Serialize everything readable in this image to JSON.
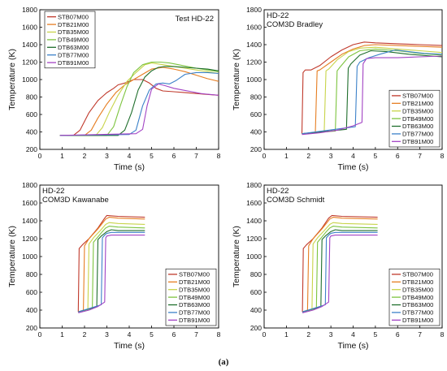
{
  "figure": {
    "caption": "(a)",
    "series_colors": {
      "STB07M00": "#c0392b",
      "DTB21M00": "#e67e22",
      "DTB35M00": "#c8d44a",
      "DTB49M00": "#7dc43f",
      "DTB63M00": "#1f6e2c",
      "DTB77M00": "#3d82c9",
      "DTB91M00": "#a243c4"
    }
  },
  "chart_data": [
    {
      "type": "line",
      "title": "Test HD-22",
      "xlabel": "Time (s)",
      "ylabel": "Temperature (K)",
      "xlim": [
        0,
        8
      ],
      "ylim": [
        200,
        1800
      ],
      "xticks": [
        "0",
        "1",
        "2",
        "3",
        "4",
        "5",
        "6",
        "7",
        "8"
      ],
      "yticks": [
        "200",
        "400",
        "600",
        "800",
        "1000",
        "1200",
        "1400",
        "1600",
        "1800"
      ],
      "legend_position": "top-left",
      "series": [
        {
          "name": "STB07M00",
          "x": [
            0.9,
            1.5,
            1.8,
            2.2,
            2.6,
            3.0,
            3.3,
            3.5,
            3.8,
            4.2,
            4.6,
            4.9,
            5.2,
            5.5,
            6.0,
            6.5,
            7.0,
            7.5,
            8.0
          ],
          "y": [
            360,
            360,
            420,
            620,
            760,
            850,
            900,
            940,
            960,
            1000,
            1000,
            960,
            900,
            870,
            860,
            850,
            840,
            830,
            820
          ]
        },
        {
          "name": "DTB21M00",
          "x": [
            0.9,
            2.0,
            2.3,
            2.6,
            3.0,
            3.4,
            3.8,
            4.2,
            4.6,
            5.0,
            5.5,
            6.0,
            6.5,
            7.0,
            7.5,
            8.0
          ],
          "y": [
            360,
            360,
            420,
            560,
            720,
            850,
            940,
            1000,
            1060,
            1120,
            1140,
            1120,
            1090,
            1050,
            1010,
            980
          ]
        },
        {
          "name": "DTB35M00",
          "x": [
            0.9,
            2.5,
            2.8,
            3.1,
            3.5,
            3.9,
            4.3,
            4.7,
            5.0,
            5.5,
            6.0,
            6.5,
            7.0,
            7.5,
            8.0
          ],
          "y": [
            360,
            360,
            450,
            620,
            820,
            980,
            1080,
            1170,
            1190,
            1170,
            1150,
            1130,
            1110,
            1090,
            1070
          ]
        },
        {
          "name": "DTB49M00",
          "x": [
            0.9,
            3.0,
            3.3,
            3.6,
            3.9,
            4.2,
            4.6,
            5.0,
            5.4,
            5.8,
            6.2,
            6.6,
            7.0,
            7.5,
            8.0
          ],
          "y": [
            360,
            360,
            460,
            700,
            920,
            1080,
            1170,
            1200,
            1200,
            1190,
            1170,
            1150,
            1130,
            1110,
            1090
          ]
        },
        {
          "name": "DTB63M00",
          "x": [
            0.9,
            3.5,
            3.8,
            4.1,
            4.4,
            4.7,
            5.0,
            5.3,
            5.6,
            6.0,
            6.5,
            7.0,
            7.5,
            8.0
          ],
          "y": [
            360,
            360,
            420,
            620,
            880,
            1030,
            1100,
            1140,
            1150,
            1150,
            1140,
            1130,
            1120,
            1100
          ]
        },
        {
          "name": "DTB77M00",
          "x": [
            0.9,
            4.0,
            4.3,
            4.6,
            4.9,
            5.2,
            5.5,
            5.8,
            6.1,
            6.5,
            7.0,
            7.5,
            8.0
          ],
          "y": [
            360,
            370,
            420,
            700,
            880,
            950,
            960,
            950,
            990,
            1060,
            1080,
            1080,
            1070
          ]
        },
        {
          "name": "DTB91M00",
          "x": [
            0.9,
            4.3,
            4.6,
            4.8,
            5.0,
            5.3,
            5.6,
            6.0,
            6.4,
            6.8,
            7.2,
            7.6,
            8.0
          ],
          "y": [
            360,
            380,
            430,
            700,
            890,
            950,
            930,
            900,
            880,
            860,
            840,
            830,
            820
          ]
        }
      ]
    },
    {
      "type": "line",
      "title": "HD-22",
      "subtitle": "COM3D Bradley",
      "xlabel": "Time (s)",
      "ylabel": "Temperature (K)",
      "xlim": [
        0,
        8
      ],
      "ylim": [
        200,
        1800
      ],
      "xticks": [
        "0",
        "1",
        "2",
        "3",
        "4",
        "5",
        "6",
        "7",
        "8"
      ],
      "yticks": [
        "200",
        "400",
        "600",
        "800",
        "1000",
        "1200",
        "1400",
        "1600",
        "1800"
      ],
      "legend_position": "bottom-right",
      "series": [
        {
          "name": "STB07M00",
          "x": [
            1.7,
            1.75,
            1.85,
            2.1,
            2.5,
            3.0,
            3.5,
            4.0,
            4.5,
            5.0,
            6.0,
            7.0,
            8.0
          ],
          "y": [
            380,
            1080,
            1110,
            1110,
            1160,
            1260,
            1340,
            1400,
            1430,
            1420,
            1410,
            1400,
            1390
          ]
        },
        {
          "name": "DTB21M00",
          "x": [
            1.7,
            2.3,
            2.38,
            2.5,
            3.0,
            3.5,
            4.0,
            4.5,
            5.0,
            6.0,
            7.0,
            8.0
          ],
          "y": [
            380,
            390,
            1100,
            1110,
            1200,
            1290,
            1350,
            1390,
            1400,
            1390,
            1380,
            1370
          ]
        },
        {
          "name": "DTB35M00",
          "x": [
            1.7,
            2.7,
            2.78,
            2.9,
            3.3,
            3.8,
            4.3,
            5.0,
            6.0,
            7.0,
            8.0
          ],
          "y": [
            380,
            400,
            1100,
            1120,
            1230,
            1320,
            1360,
            1370,
            1350,
            1330,
            1310
          ]
        },
        {
          "name": "DTB49M00",
          "x": [
            1.7,
            3.2,
            3.28,
            3.4,
            3.8,
            4.3,
            5.0,
            6.0,
            7.0,
            8.0
          ],
          "y": [
            380,
            410,
            1100,
            1140,
            1260,
            1330,
            1350,
            1330,
            1300,
            1280
          ]
        },
        {
          "name": "DTB63M00",
          "x": [
            1.7,
            3.7,
            3.78,
            3.9,
            4.3,
            4.8,
            5.5,
            6.5,
            7.5,
            8.0
          ],
          "y": [
            380,
            430,
            1130,
            1180,
            1280,
            1330,
            1320,
            1290,
            1270,
            1260
          ]
        },
        {
          "name": "DTB77M00",
          "x": [
            1.7,
            4.1,
            4.18,
            4.3,
            4.7,
            5.2,
            5.9,
            6.5,
            7.2,
            8.0
          ],
          "y": [
            380,
            460,
            1150,
            1200,
            1250,
            1290,
            1340,
            1320,
            1300,
            1290
          ]
        },
        {
          "name": "DTB91M00",
          "x": [
            1.7,
            2.5,
            3.3,
            4.0,
            4.4,
            4.45,
            4.6,
            5.0,
            6.0,
            7.0,
            8.0
          ],
          "y": [
            370,
            390,
            420,
            470,
            510,
            1180,
            1240,
            1250,
            1250,
            1260,
            1270
          ]
        }
      ]
    },
    {
      "type": "line",
      "title": "HD-22",
      "subtitle": "COM3D Kawanabe",
      "xlabel": "Time (s)",
      "ylabel": "Temperature (K)",
      "xlim": [
        0,
        8
      ],
      "ylim": [
        200,
        1800
      ],
      "xticks": [
        "0",
        "1",
        "2",
        "3",
        "4",
        "5",
        "6",
        "7",
        "8"
      ],
      "yticks": [
        "200",
        "400",
        "600",
        "800",
        "1000",
        "1200",
        "1400",
        "1600",
        "1800"
      ],
      "legend_position": "bottom-right",
      "series": [
        {
          "name": "STB07M00",
          "x": [
            1.72,
            1.76,
            1.9,
            2.2,
            2.6,
            2.9,
            3.0,
            3.5,
            4.7
          ],
          "y": [
            380,
            1090,
            1130,
            1200,
            1320,
            1430,
            1460,
            1450,
            1440
          ]
        },
        {
          "name": "DTB21M00",
          "x": [
            1.72,
            1.95,
            2.0,
            2.2,
            2.6,
            2.95,
            3.1,
            3.5,
            4.7
          ],
          "y": [
            380,
            400,
            1120,
            1200,
            1310,
            1420,
            1440,
            1430,
            1420
          ]
        },
        {
          "name": "DTB35M00",
          "x": [
            1.72,
            2.15,
            2.2,
            2.4,
            2.7,
            2.95,
            3.1,
            3.5,
            4.7
          ],
          "y": [
            380,
            410,
            1140,
            1210,
            1290,
            1360,
            1380,
            1370,
            1360
          ]
        },
        {
          "name": "DTB49M00",
          "x": [
            1.72,
            2.35,
            2.4,
            2.6,
            2.8,
            2.95,
            3.1,
            3.5,
            4.7
          ],
          "y": [
            380,
            420,
            1160,
            1220,
            1280,
            1320,
            1340,
            1330,
            1320
          ]
        },
        {
          "name": "DTB63M00",
          "x": [
            1.72,
            2.55,
            2.6,
            2.75,
            2.9,
            3.0,
            3.2,
            3.5,
            4.7
          ],
          "y": [
            380,
            440,
            1190,
            1230,
            1260,
            1280,
            1300,
            1290,
            1290
          ]
        },
        {
          "name": "DTB77M00",
          "x": [
            1.72,
            2.75,
            2.8,
            2.9,
            3.0,
            3.2,
            3.5,
            4.7
          ],
          "y": [
            380,
            460,
            1210,
            1240,
            1260,
            1270,
            1270,
            1270
          ]
        },
        {
          "name": "DTB91M00",
          "x": [
            1.72,
            2.2,
            2.6,
            2.9,
            2.95,
            3.0,
            3.2,
            3.5,
            4.7
          ],
          "y": [
            370,
            400,
            440,
            490,
            1210,
            1230,
            1240,
            1240,
            1240
          ]
        }
      ]
    },
    {
      "type": "line",
      "title": "HD-22",
      "subtitle": "COM3D Schmidt",
      "xlabel": "Time (s)",
      "ylabel": "Temperature (K)",
      "xlim": [
        0,
        8
      ],
      "ylim": [
        200,
        1800
      ],
      "xticks": [
        "0",
        "1",
        "2",
        "3",
        "4",
        "5",
        "6",
        "7",
        "8"
      ],
      "yticks": [
        "200",
        "400",
        "600",
        "800",
        "1000",
        "1200",
        "1400",
        "1600",
        "1800"
      ],
      "legend_position": "bottom-right",
      "series": [
        {
          "name": "STB07M00",
          "x": [
            1.72,
            1.76,
            1.9,
            2.2,
            2.6,
            2.9,
            3.05,
            3.5,
            5.1
          ],
          "y": [
            380,
            1090,
            1130,
            1200,
            1320,
            1430,
            1460,
            1450,
            1440
          ]
        },
        {
          "name": "DTB21M00",
          "x": [
            1.72,
            1.95,
            2.0,
            2.2,
            2.6,
            2.95,
            3.1,
            3.5,
            5.1
          ],
          "y": [
            380,
            400,
            1120,
            1200,
            1310,
            1420,
            1440,
            1430,
            1420
          ]
        },
        {
          "name": "DTB35M00",
          "x": [
            1.72,
            2.15,
            2.2,
            2.4,
            2.7,
            2.95,
            3.1,
            3.5,
            5.1
          ],
          "y": [
            380,
            410,
            1140,
            1210,
            1290,
            1360,
            1380,
            1370,
            1360
          ]
        },
        {
          "name": "DTB49M00",
          "x": [
            1.72,
            2.35,
            2.4,
            2.6,
            2.8,
            2.95,
            3.1,
            3.5,
            5.1
          ],
          "y": [
            380,
            420,
            1160,
            1220,
            1280,
            1320,
            1340,
            1330,
            1320
          ]
        },
        {
          "name": "DTB63M00",
          "x": [
            1.72,
            2.55,
            2.6,
            2.75,
            2.9,
            3.0,
            3.2,
            3.5,
            5.1
          ],
          "y": [
            380,
            440,
            1190,
            1230,
            1260,
            1280,
            1300,
            1290,
            1290
          ]
        },
        {
          "name": "DTB77M00",
          "x": [
            1.72,
            2.75,
            2.8,
            2.9,
            3.0,
            3.2,
            3.5,
            5.1
          ],
          "y": [
            380,
            460,
            1210,
            1240,
            1260,
            1270,
            1270,
            1270
          ]
        },
        {
          "name": "DTB91M00",
          "x": [
            1.72,
            2.2,
            2.6,
            2.9,
            2.95,
            3.0,
            3.2,
            3.5,
            5.1
          ],
          "y": [
            370,
            400,
            440,
            490,
            1210,
            1230,
            1240,
            1240,
            1240
          ]
        }
      ]
    }
  ]
}
